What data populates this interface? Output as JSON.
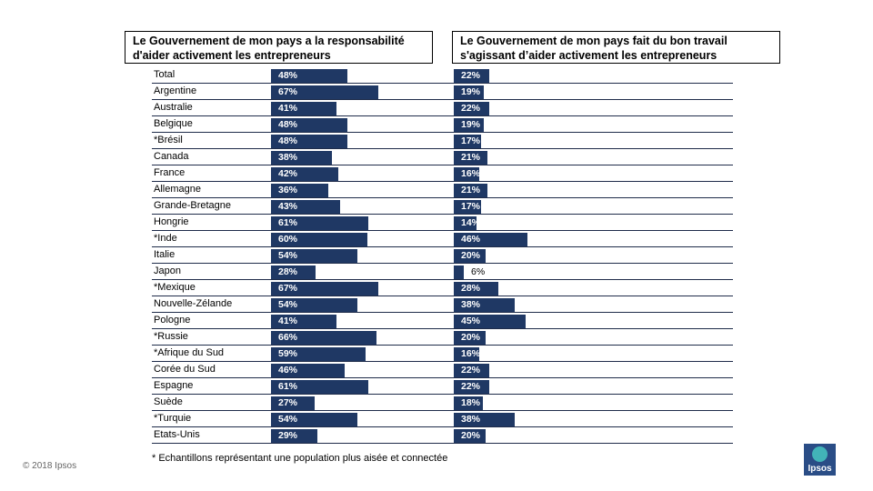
{
  "headers": {
    "left": "Le Gouvernement de mon pays a la responsabilité d'aider activement les entrepreneurs",
    "right": "Le Gouvernement de mon pays fait du bon travail s'agissant d’aider activement les entrepreneurs"
  },
  "footnote": "* Echantillons représentant une population plus aisée et connectée",
  "copyright": "© 2018 Ipsos",
  "logo_text": "Ipsos",
  "colors": {
    "bar": "#1f3864",
    "logo": "#2a4d86",
    "logo_accent": "#42b4b8"
  },
  "chart_data": [
    {
      "type": "bar",
      "orientation": "horizontal",
      "title": "Le Gouvernement de mon pays a la responsabilité d'aider activement les entrepreneurs",
      "categories": [
        "Total",
        "Argentine",
        "Australie",
        "Belgique",
        "*Brésil",
        "Canada",
        "France",
        "Allemagne",
        "Grande-Bretagne",
        "Hongrie",
        "*Inde",
        "Italie",
        "Japon",
        "*Mexique",
        "Nouvelle-Zélande",
        "Pologne",
        "*Russie",
        "*Afrique du Sud",
        "Corée du Sud",
        "Espagne",
        "Suède",
        "*Turquie",
        "Etats-Unis"
      ],
      "values": [
        48,
        67,
        41,
        48,
        48,
        38,
        42,
        36,
        43,
        61,
        60,
        54,
        28,
        67,
        54,
        41,
        66,
        59,
        46,
        61,
        27,
        54,
        29
      ],
      "unit": "%",
      "xlim": [
        0,
        100
      ]
    },
    {
      "type": "bar",
      "orientation": "horizontal",
      "title": "Le Gouvernement de mon pays fait du bon travail s'agissant d’aider activement les entrepreneurs",
      "categories": [
        "Total",
        "Argentine",
        "Australie",
        "Belgique",
        "*Brésil",
        "Canada",
        "France",
        "Allemagne",
        "Grande-Bretagne",
        "Hongrie",
        "*Inde",
        "Italie",
        "Japon",
        "*Mexique",
        "Nouvelle-Zélande",
        "Pologne",
        "*Russie",
        "*Afrique du Sud",
        "Corée du Sud",
        "Espagne",
        "Suède",
        "*Turquie",
        "Etats-Unis"
      ],
      "values": [
        22,
        19,
        22,
        19,
        17,
        21,
        16,
        21,
        17,
        14,
        46,
        20,
        6,
        28,
        38,
        45,
        20,
        16,
        22,
        22,
        18,
        38,
        20
      ],
      "unit": "%",
      "xlim": [
        0,
        100
      ]
    }
  ]
}
